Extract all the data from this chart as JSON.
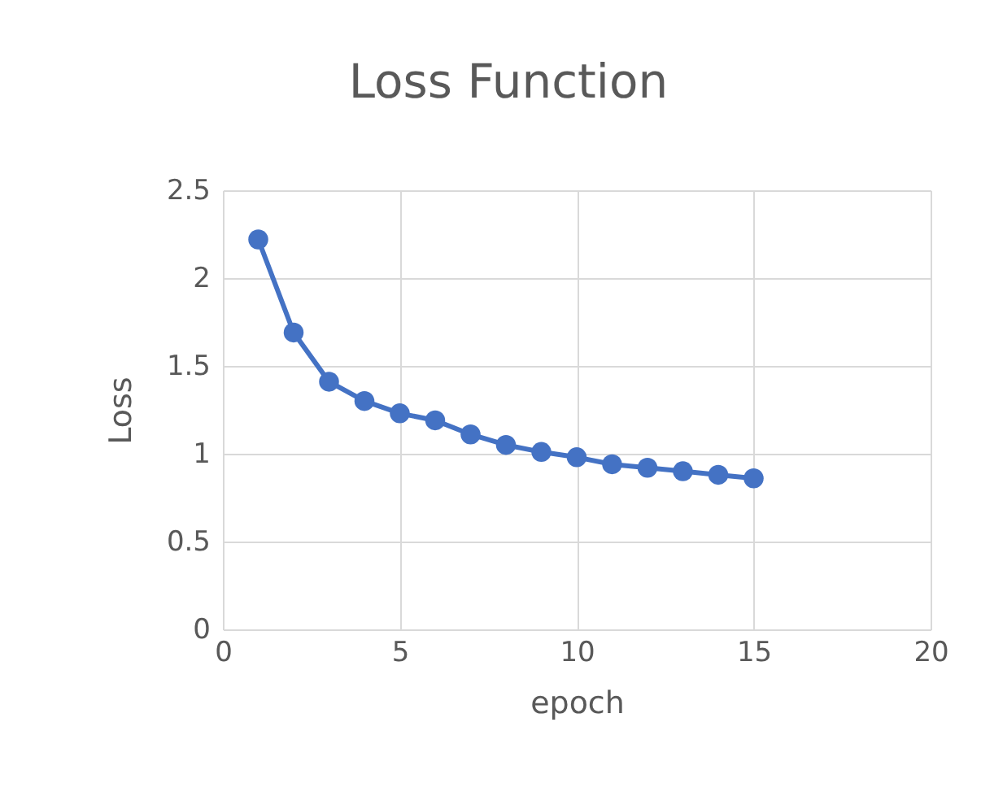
{
  "chart_data": {
    "type": "line",
    "title": "Loss Function",
    "xlabel": "epoch",
    "ylabel": "Loss",
    "x": [
      1,
      2,
      3,
      4,
      5,
      6,
      7,
      8,
      9,
      10,
      11,
      12,
      13,
      14,
      15
    ],
    "series": [
      {
        "color": "#4472c4",
        "values": [
          2.22,
          1.69,
          1.41,
          1.3,
          1.23,
          1.19,
          1.11,
          1.05,
          1.01,
          0.98,
          0.94,
          0.92,
          0.9,
          0.88,
          0.86
        ]
      }
    ],
    "xlim": [
      0,
      20
    ],
    "xticks": [
      0,
      5,
      10,
      15,
      20
    ],
    "ylim": [
      0,
      2.5
    ],
    "yticks": [
      0,
      0.5,
      1,
      1.5,
      2,
      2.5
    ],
    "grid": true,
    "marker": "circle",
    "line_style": "solid"
  }
}
